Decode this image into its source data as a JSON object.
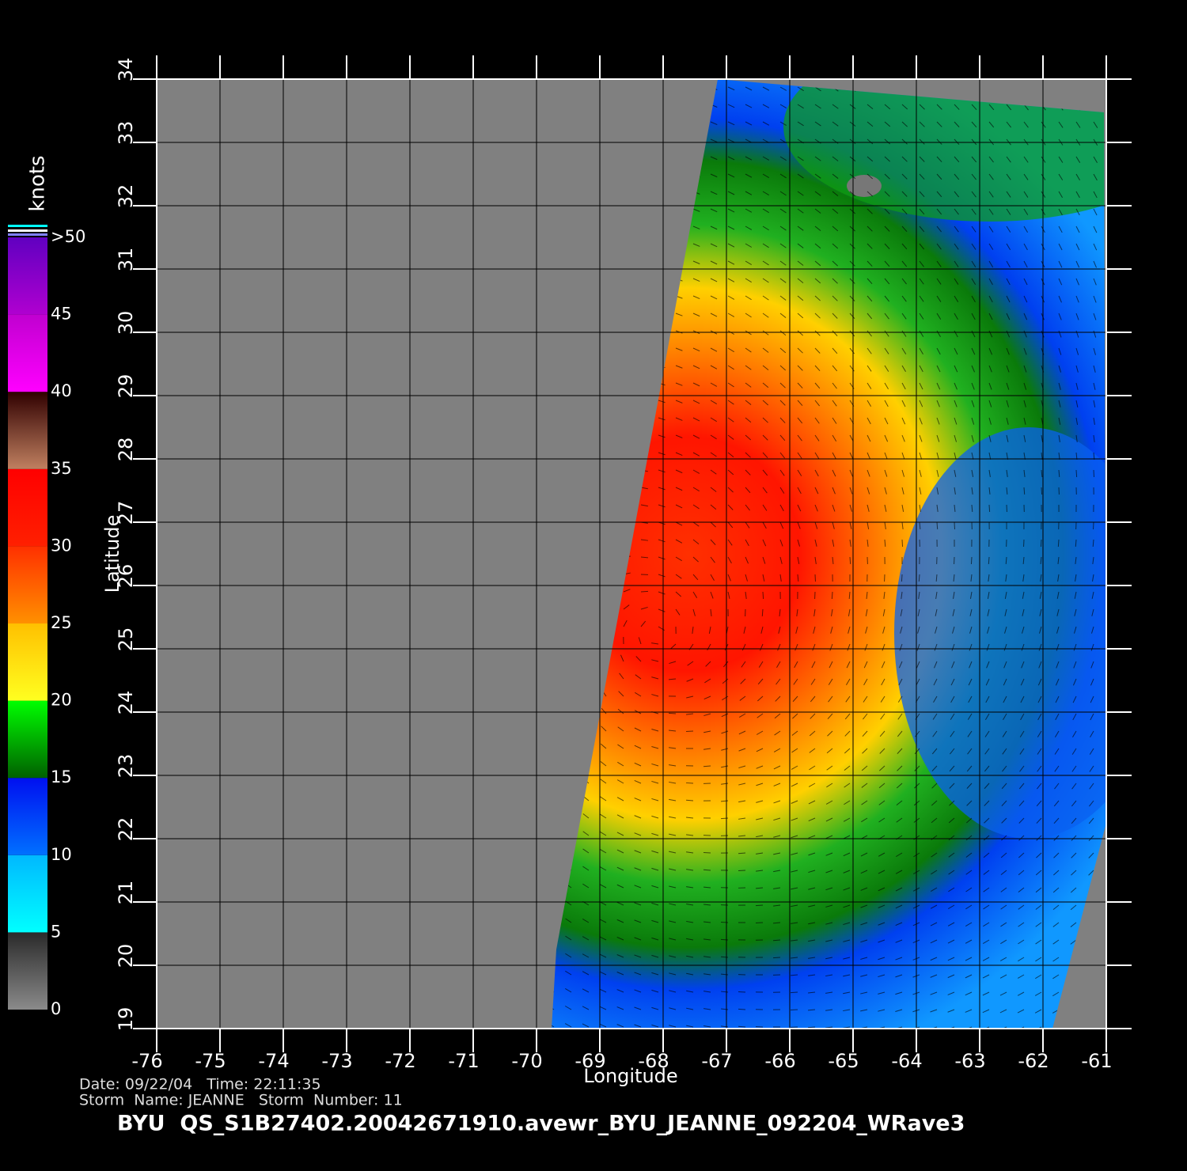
{
  "map": {
    "title": "BYU  QS_S1B27402.20042671910.avewr_BYU_JEANNE_092204_WRave3",
    "date_line": "Date: 09/22/04   Time: 22:11:35",
    "storm_line": "Storm  Name: JEANNE   Storm  Number: 11",
    "xlabel": "Longitude",
    "ylabel": "Latitude",
    "xlim": [
      -76,
      -61
    ],
    "xticks": [
      -76,
      -75,
      -74,
      -73,
      -72,
      -71,
      -70,
      -69,
      -68,
      -67,
      -66,
      -65,
      -64,
      -63,
      -62,
      -61
    ],
    "ylim": [
      19,
      34
    ],
    "yticks": [
      19,
      20,
      21,
      22,
      23,
      24,
      25,
      26,
      27,
      28,
      29,
      30,
      31,
      32,
      33,
      34
    ],
    "grid": true,
    "colorbar": {
      "unit": "knots",
      "lim": [
        0,
        50
      ],
      "ticks": [
        0,
        5,
        10,
        15,
        20,
        25,
        30,
        35,
        40,
        45,
        {
          "value": 50,
          "label": ">50"
        }
      ],
      "colors": [
        [
          "#8a8a8a",
          "#2a2a2a"
        ],
        [
          "#00ffff",
          "#00b8ff"
        ],
        [
          "#0070ff",
          "#0010f0"
        ],
        [
          "#006000",
          "#00ff00"
        ],
        [
          "#ffff20",
          "#ffc000"
        ],
        [
          "#ff9000",
          "#ff3000"
        ],
        [
          "#ff2000",
          "#ff0000"
        ],
        [
          "#c08060",
          "#300000"
        ],
        [
          "#ff00ff",
          "#c000d0"
        ],
        [
          "#b000d0",
          "#6000c0"
        ]
      ]
    }
  }
}
